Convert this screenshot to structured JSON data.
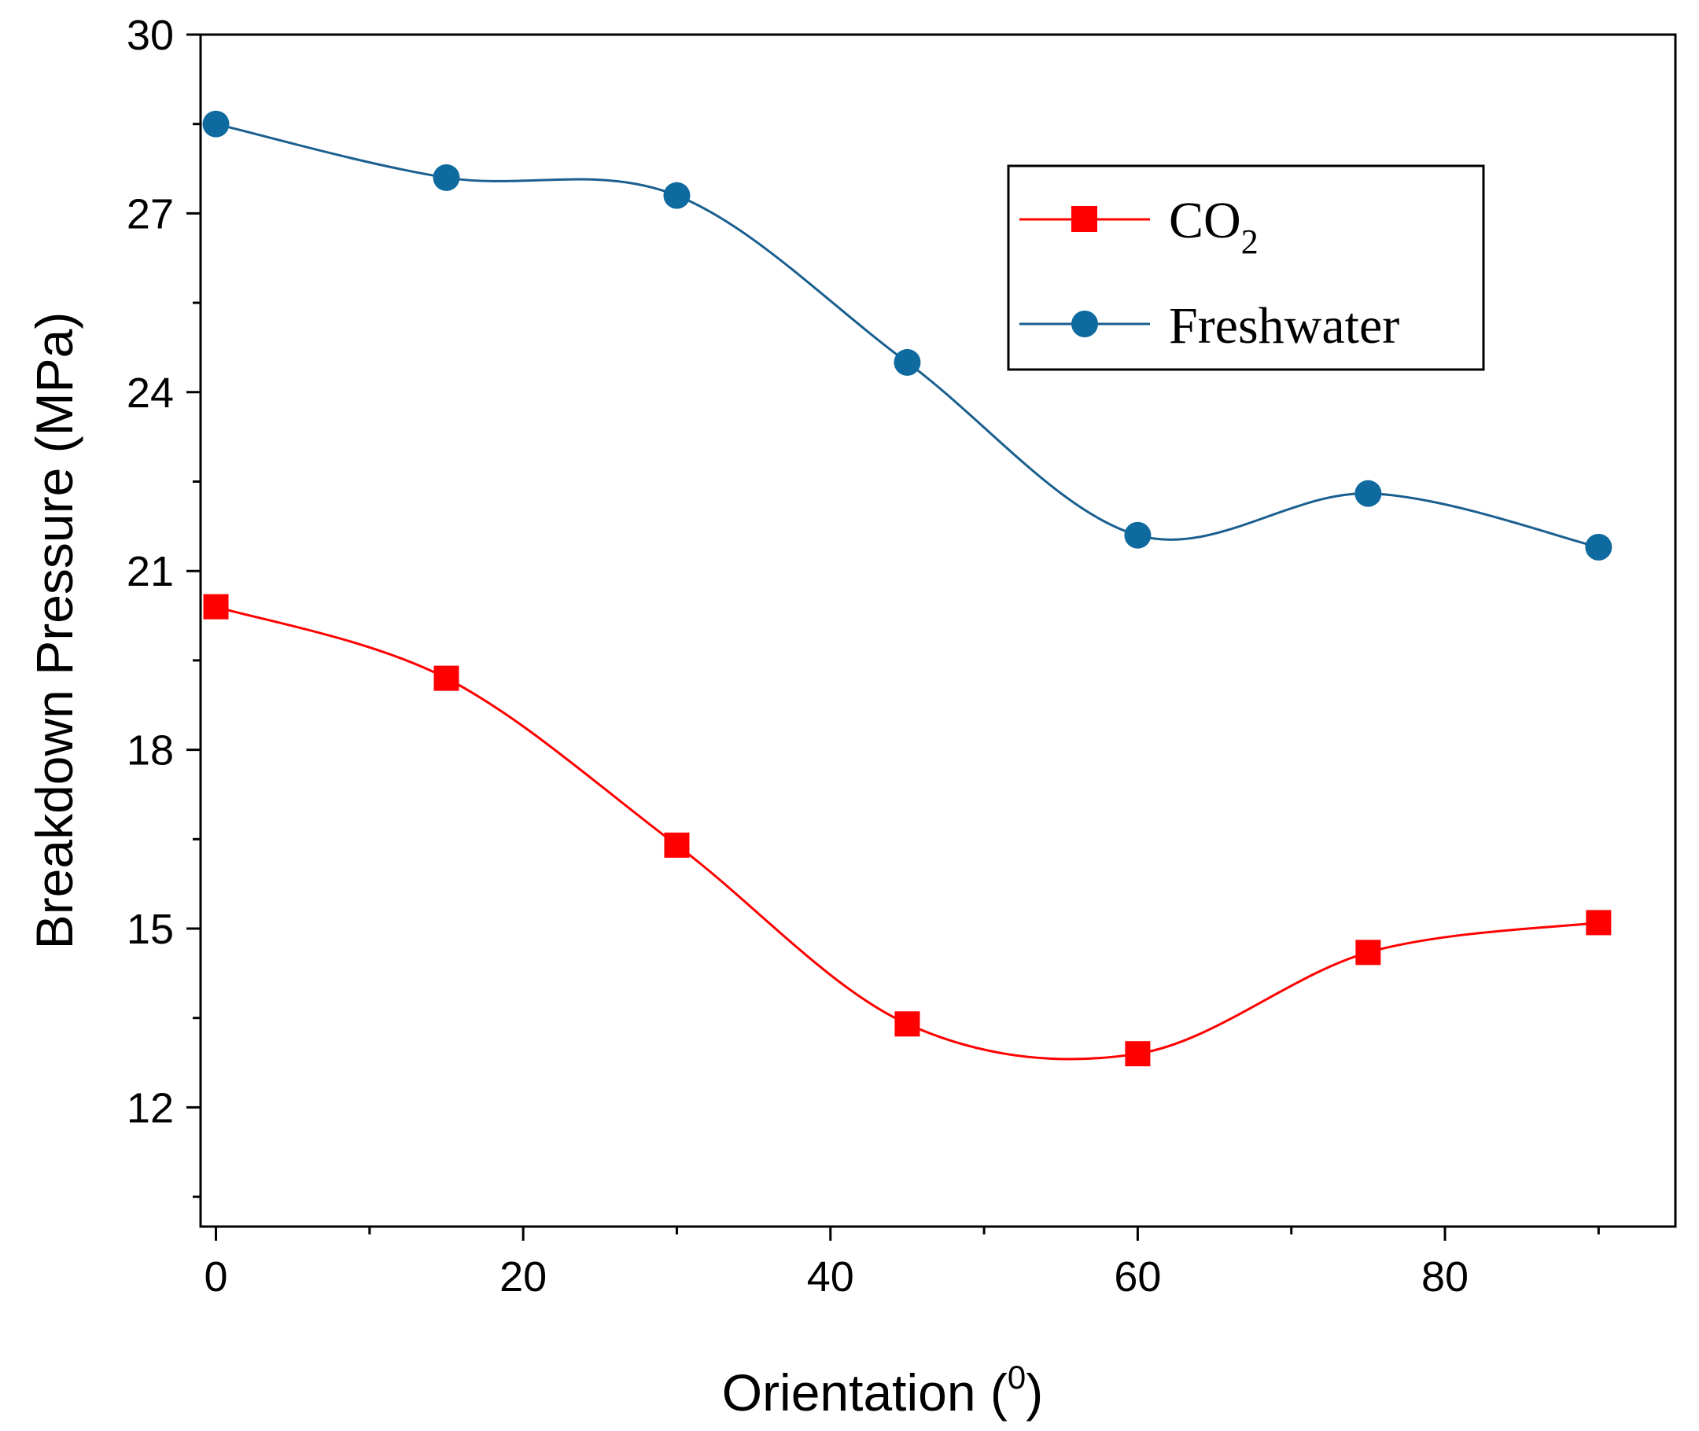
{
  "chart_data": {
    "type": "line",
    "title": "",
    "xlabel_main": "Orientation (",
    "xlabel_sup": "0",
    "xlabel_close": ")",
    "ylabel": "Breakdown Pressure (MPa)",
    "xlim": [
      -1,
      95
    ],
    "ylim": [
      10,
      30
    ],
    "x_ticks": [
      0,
      20,
      40,
      60,
      80
    ],
    "x_minor_ticks": [
      10,
      30,
      50,
      70,
      90
    ],
    "y_ticks": [
      12,
      15,
      18,
      21,
      24,
      27,
      30
    ],
    "y_minor_ticks": [
      10.5,
      13.5,
      16.5,
      19.5,
      22.5,
      25.5,
      28.5
    ],
    "legend_position": "top-right",
    "x": [
      0,
      15,
      30,
      45,
      60,
      75,
      90
    ],
    "series": [
      {
        "name": "CO",
        "name_sub": "2",
        "marker": "square",
        "color": "#ff0000",
        "values": [
          20.4,
          19.2,
          16.4,
          13.4,
          12.9,
          14.6,
          15.1
        ]
      },
      {
        "name": "Freshwater",
        "name_sub": "",
        "marker": "circle",
        "color": "#1a5f8f",
        "marker_color": "#0f6aa0",
        "values": [
          28.5,
          27.6,
          27.3,
          24.5,
          21.6,
          22.3,
          21.4
        ]
      }
    ]
  }
}
